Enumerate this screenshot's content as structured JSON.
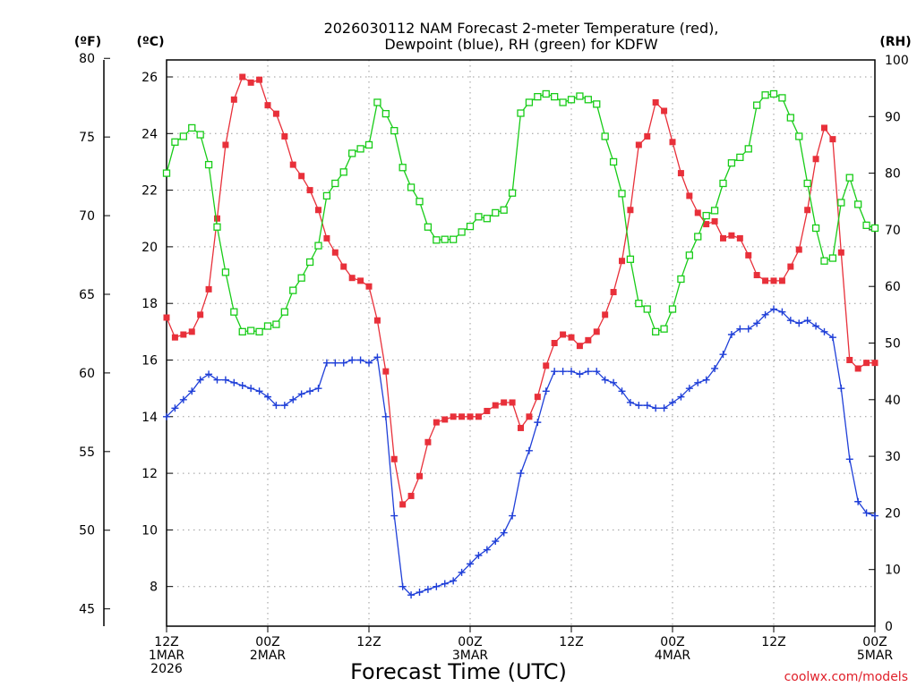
{
  "chart_data": {
    "type": "line",
    "title_lines": [
      "2026030112 NAM Forecast 2-meter Temperature (red),",
      "Dewpoint (blue), RH (green) for KDFW"
    ],
    "xlabel": "Forecast Time (UTC)",
    "credit": "coolwx.com/models",
    "units": {
      "fahrenheit": "(ºF)",
      "celsius": "(ºC)",
      "rh": "(RH)"
    },
    "grid": true,
    "x_hours_range": [
      0,
      84
    ],
    "x_ticks": [
      {
        "hour": 0,
        "lines": [
          "12Z",
          "1MAR",
          "2026"
        ]
      },
      {
        "hour": 12,
        "lines": [
          "00Z",
          "2MAR"
        ]
      },
      {
        "hour": 24,
        "lines": [
          "12Z"
        ]
      },
      {
        "hour": 36,
        "lines": [
          "00Z",
          "3MAR"
        ]
      },
      {
        "hour": 48,
        "lines": [
          "12Z"
        ]
      },
      {
        "hour": 60,
        "lines": [
          "00Z",
          "4MAR"
        ]
      },
      {
        "hour": 72,
        "lines": [
          "12Z"
        ]
      },
      {
        "hour": 84,
        "lines": [
          "00Z",
          "5MAR"
        ]
      }
    ],
    "celsius_axis": {
      "range": [
        6.6,
        26.6
      ],
      "ticks": [
        8,
        10,
        12,
        14,
        16,
        18,
        20,
        22,
        24,
        26
      ]
    },
    "fahrenheit_axis": {
      "range": [
        43.9,
        79.9
      ],
      "ticks": [
        45,
        50,
        55,
        60,
        65,
        70,
        75,
        80
      ]
    },
    "rh_axis": {
      "range": [
        0,
        100
      ],
      "ticks": [
        0,
        10,
        20,
        30,
        40,
        50,
        60,
        70,
        80,
        90,
        100
      ]
    },
    "series": [
      {
        "key": "temperature",
        "color": "#e8303a",
        "marker": "filled-square",
        "axis": "celsius",
        "values": [
          [
            0,
            17.5
          ],
          [
            1,
            16.8
          ],
          [
            2,
            16.9
          ],
          [
            3,
            17.0
          ],
          [
            4,
            17.6
          ],
          [
            5,
            18.5
          ],
          [
            6,
            21.0
          ],
          [
            7,
            23.6
          ],
          [
            8,
            25.2
          ],
          [
            9,
            26.0
          ],
          [
            10,
            25.8
          ],
          [
            11,
            25.9
          ],
          [
            12,
            25.0
          ],
          [
            13,
            24.7
          ],
          [
            14,
            23.9
          ],
          [
            15,
            22.9
          ],
          [
            16,
            22.5
          ],
          [
            17,
            22.0
          ],
          [
            18,
            21.3
          ],
          [
            19,
            20.3
          ],
          [
            20,
            19.8
          ],
          [
            21,
            19.3
          ],
          [
            22,
            18.9
          ],
          [
            23,
            18.8
          ],
          [
            24,
            18.6
          ],
          [
            25,
            17.4
          ],
          [
            26,
            15.6
          ],
          [
            27,
            12.5
          ],
          [
            28,
            10.9
          ],
          [
            29,
            11.2
          ],
          [
            30,
            11.9
          ],
          [
            31,
            13.1
          ],
          [
            32,
            13.8
          ],
          [
            33,
            13.9
          ],
          [
            34,
            14.0
          ],
          [
            35,
            14.0
          ],
          [
            36,
            14.0
          ],
          [
            37,
            14.0
          ],
          [
            38,
            14.2
          ],
          [
            39,
            14.4
          ],
          [
            40,
            14.5
          ],
          [
            41,
            14.5
          ],
          [
            42,
            13.6
          ],
          [
            43,
            14.0
          ],
          [
            44,
            14.7
          ],
          [
            45,
            15.8
          ],
          [
            46,
            16.6
          ],
          [
            47,
            16.9
          ],
          [
            48,
            16.8
          ],
          [
            49,
            16.5
          ],
          [
            50,
            16.7
          ],
          [
            51,
            17.0
          ],
          [
            52,
            17.6
          ],
          [
            53,
            18.4
          ],
          [
            54,
            19.5
          ],
          [
            55,
            21.3
          ],
          [
            56,
            23.6
          ],
          [
            57,
            23.9
          ],
          [
            58,
            25.1
          ],
          [
            59,
            24.8
          ],
          [
            60,
            23.7
          ],
          [
            61,
            22.6
          ],
          [
            62,
            21.8
          ],
          [
            63,
            21.2
          ],
          [
            64,
            20.8
          ],
          [
            65,
            20.9
          ],
          [
            66,
            20.3
          ],
          [
            67,
            20.4
          ],
          [
            68,
            20.3
          ],
          [
            69,
            19.7
          ],
          [
            70,
            19.0
          ],
          [
            71,
            18.8
          ],
          [
            72,
            18.8
          ],
          [
            73,
            18.8
          ],
          [
            74,
            19.3
          ],
          [
            75,
            19.9
          ],
          [
            76,
            21.3
          ],
          [
            77,
            23.1
          ],
          [
            78,
            24.2
          ],
          [
            79,
            23.8
          ],
          [
            80,
            19.8
          ],
          [
            81,
            16.0
          ],
          [
            82,
            15.7
          ],
          [
            83,
            15.9
          ],
          [
            84,
            15.9
          ]
        ]
      },
      {
        "key": "dewpoint",
        "color": "#1f3fd8",
        "marker": "plus",
        "axis": "celsius",
        "values": [
          [
            0,
            14.0
          ],
          [
            1,
            14.3
          ],
          [
            2,
            14.6
          ],
          [
            3,
            14.9
          ],
          [
            4,
            15.3
          ],
          [
            5,
            15.5
          ],
          [
            6,
            15.3
          ],
          [
            7,
            15.3
          ],
          [
            8,
            15.2
          ],
          [
            9,
            15.1
          ],
          [
            10,
            15.0
          ],
          [
            11,
            14.9
          ],
          [
            12,
            14.7
          ],
          [
            13,
            14.4
          ],
          [
            14,
            14.4
          ],
          [
            15,
            14.6
          ],
          [
            16,
            14.8
          ],
          [
            17,
            14.9
          ],
          [
            18,
            15.0
          ],
          [
            19,
            15.9
          ],
          [
            20,
            15.9
          ],
          [
            21,
            15.9
          ],
          [
            22,
            16.0
          ],
          [
            23,
            16.0
          ],
          [
            24,
            15.9
          ],
          [
            25,
            16.1
          ],
          [
            26,
            14.0
          ],
          [
            27,
            10.5
          ],
          [
            28,
            8.0
          ],
          [
            29,
            7.7
          ],
          [
            30,
            7.8
          ],
          [
            31,
            7.9
          ],
          [
            32,
            8.0
          ],
          [
            33,
            8.1
          ],
          [
            34,
            8.2
          ],
          [
            35,
            8.5
          ],
          [
            36,
            8.8
          ],
          [
            37,
            9.1
          ],
          [
            38,
            9.3
          ],
          [
            39,
            9.6
          ],
          [
            40,
            9.9
          ],
          [
            41,
            10.5
          ],
          [
            42,
            12.0
          ],
          [
            43,
            12.8
          ],
          [
            44,
            13.8
          ],
          [
            45,
            14.9
          ],
          [
            46,
            15.6
          ],
          [
            47,
            15.6
          ],
          [
            48,
            15.6
          ],
          [
            49,
            15.5
          ],
          [
            50,
            15.6
          ],
          [
            51,
            15.6
          ],
          [
            52,
            15.3
          ],
          [
            53,
            15.2
          ],
          [
            54,
            14.9
          ],
          [
            55,
            14.5
          ],
          [
            56,
            14.4
          ],
          [
            57,
            14.4
          ],
          [
            58,
            14.3
          ],
          [
            59,
            14.3
          ],
          [
            60,
            14.5
          ],
          [
            61,
            14.7
          ],
          [
            62,
            15.0
          ],
          [
            63,
            15.2
          ],
          [
            64,
            15.3
          ],
          [
            65,
            15.7
          ],
          [
            66,
            16.2
          ],
          [
            67,
            16.9
          ],
          [
            68,
            17.1
          ],
          [
            69,
            17.1
          ],
          [
            70,
            17.3
          ],
          [
            71,
            17.6
          ],
          [
            72,
            17.8
          ],
          [
            73,
            17.7
          ],
          [
            74,
            17.4
          ],
          [
            75,
            17.3
          ],
          [
            76,
            17.4
          ],
          [
            77,
            17.2
          ],
          [
            78,
            17.0
          ],
          [
            79,
            16.8
          ],
          [
            80,
            15.0
          ],
          [
            81,
            12.5
          ],
          [
            82,
            11.0
          ],
          [
            83,
            10.6
          ],
          [
            84,
            10.5
          ]
        ]
      },
      {
        "key": "rh",
        "color": "#18cc18",
        "marker": "open-square",
        "axis": "rh",
        "values": [
          [
            0,
            80
          ],
          [
            1,
            85.5
          ],
          [
            2,
            86.5
          ],
          [
            3,
            88
          ],
          [
            4,
            86.8
          ],
          [
            5,
            81.5
          ],
          [
            6,
            70.5
          ],
          [
            7,
            62.5
          ],
          [
            8,
            55.5
          ],
          [
            9,
            52
          ],
          [
            10,
            52.2
          ],
          [
            11,
            52
          ],
          [
            12,
            53
          ],
          [
            13,
            53.3
          ],
          [
            14,
            55.5
          ],
          [
            15,
            59.3
          ],
          [
            16,
            61.5
          ],
          [
            17,
            64.3
          ],
          [
            18,
            67.2
          ],
          [
            19,
            76
          ],
          [
            20,
            78.2
          ],
          [
            21,
            80.2
          ],
          [
            22,
            83.5
          ],
          [
            23,
            84.3
          ],
          [
            24,
            85
          ],
          [
            25,
            92.5
          ],
          [
            26,
            90.5
          ],
          [
            27,
            87.5
          ],
          [
            28,
            81
          ],
          [
            29,
            77.5
          ],
          [
            30,
            75
          ],
          [
            31,
            70.5
          ],
          [
            32,
            68.2
          ],
          [
            33,
            68.3
          ],
          [
            34,
            68.3
          ],
          [
            35,
            69.6
          ],
          [
            36,
            70.6
          ],
          [
            37,
            72.3
          ],
          [
            38,
            72
          ],
          [
            39,
            73
          ],
          [
            40,
            73.5
          ],
          [
            41,
            76.5
          ],
          [
            42,
            90.6
          ],
          [
            43,
            92.5
          ],
          [
            44,
            93.5
          ],
          [
            45,
            94
          ],
          [
            46,
            93.5
          ],
          [
            47,
            92.5
          ],
          [
            48,
            93
          ],
          [
            49,
            93.6
          ],
          [
            50,
            93
          ],
          [
            51,
            92.2
          ],
          [
            52,
            86.5
          ],
          [
            53,
            82
          ],
          [
            54,
            76.4
          ],
          [
            55,
            64.8
          ],
          [
            56,
            57
          ],
          [
            57,
            56
          ],
          [
            58,
            52
          ],
          [
            59,
            52.5
          ],
          [
            60,
            56
          ],
          [
            61,
            61.3
          ],
          [
            62,
            65.5
          ],
          [
            63,
            68.8
          ],
          [
            64,
            72.5
          ],
          [
            65,
            73.4
          ],
          [
            66,
            78.2
          ],
          [
            67,
            81.8
          ],
          [
            68,
            82.8
          ],
          [
            69,
            84.3
          ],
          [
            70,
            92
          ],
          [
            71,
            93.8
          ],
          [
            72,
            94
          ],
          [
            73,
            93.3
          ],
          [
            74,
            89.8
          ],
          [
            75,
            86.5
          ],
          [
            76,
            78.2
          ],
          [
            77,
            70.3
          ],
          [
            78,
            64.5
          ],
          [
            79,
            65
          ],
          [
            80,
            74.8
          ],
          [
            81,
            79.2
          ],
          [
            82,
            74.5
          ],
          [
            83,
            70.8
          ],
          [
            84,
            70.3
          ]
        ]
      }
    ]
  }
}
